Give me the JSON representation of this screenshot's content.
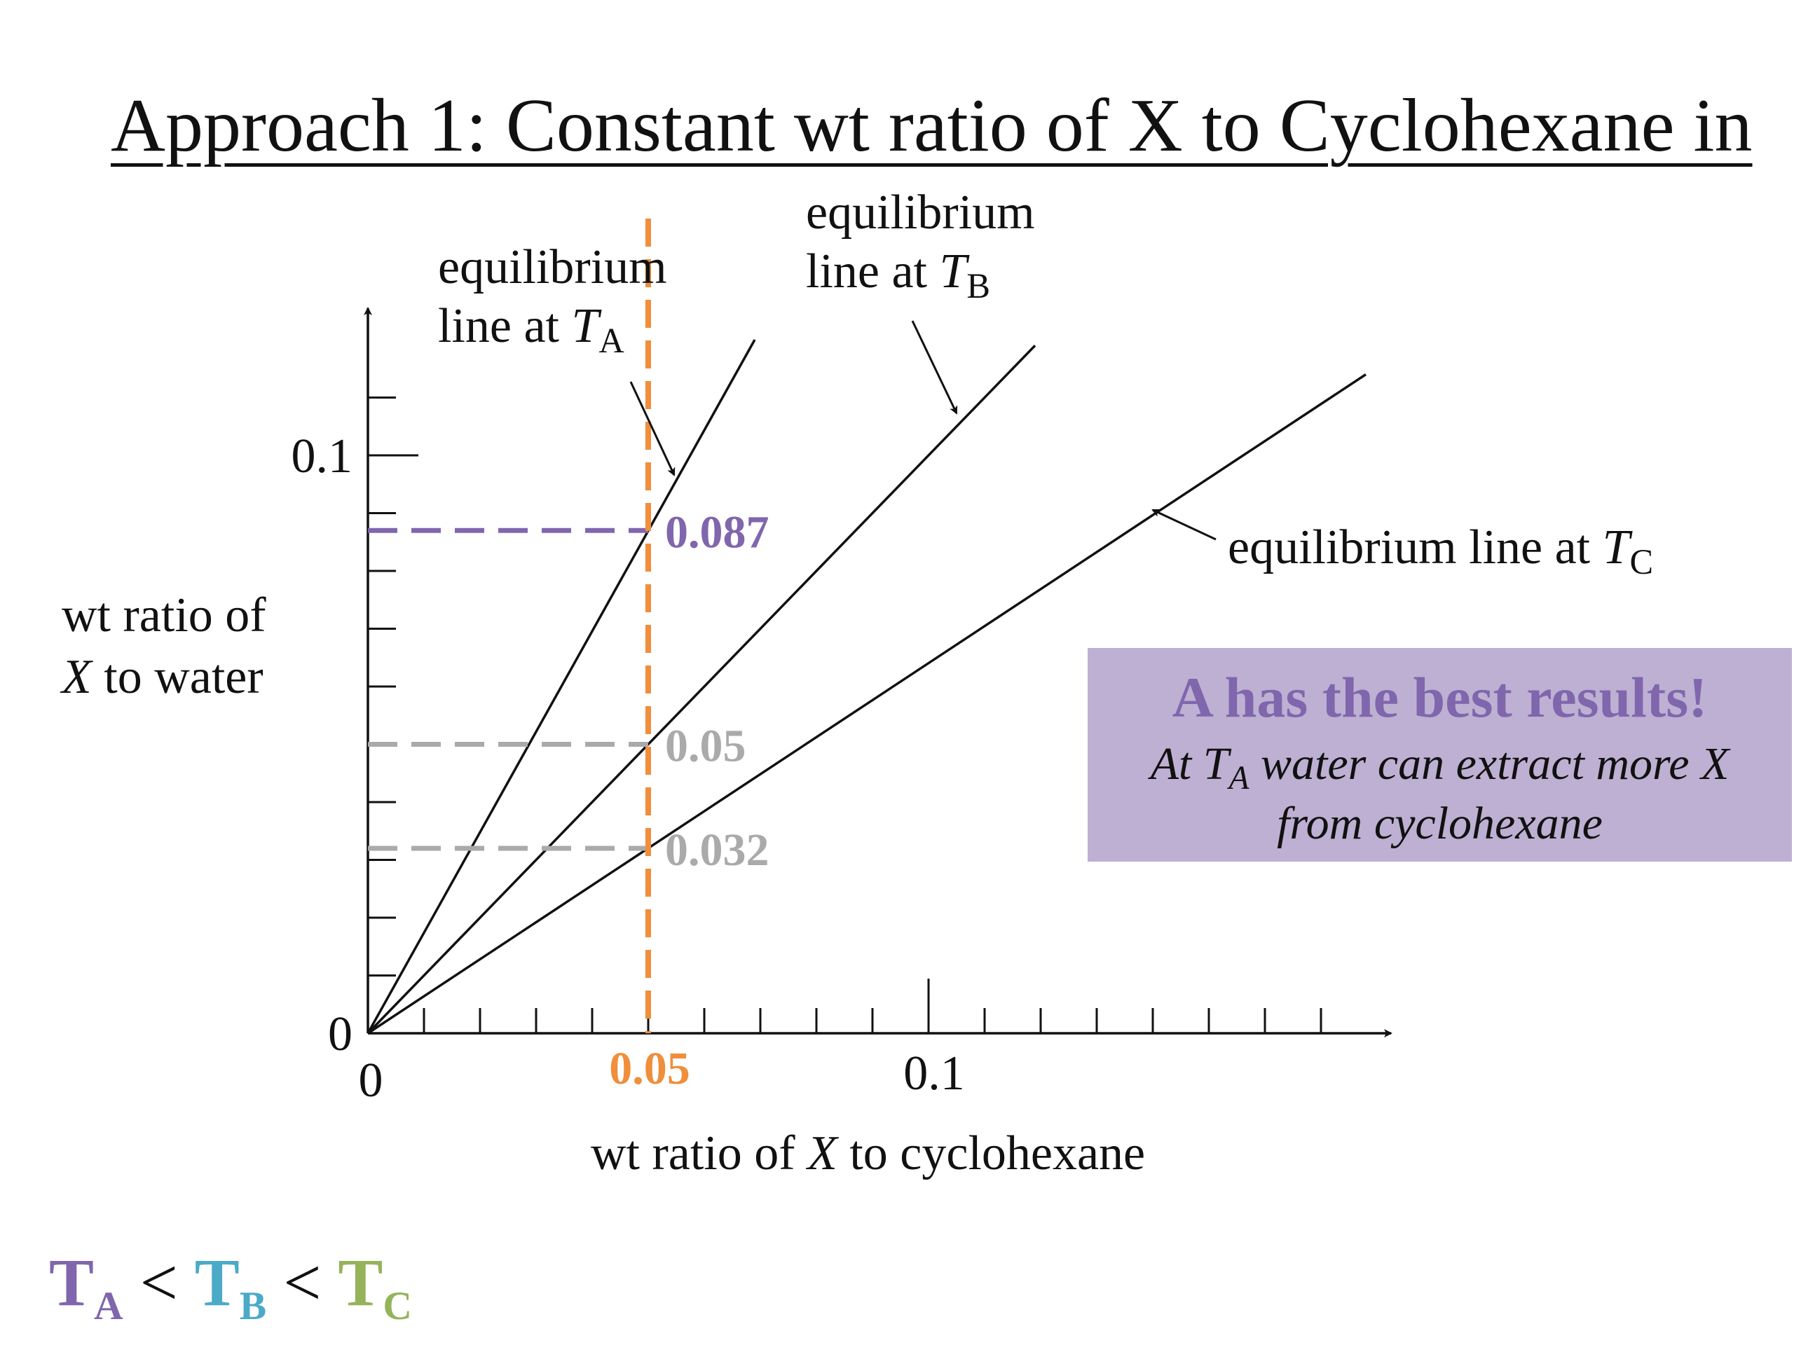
{
  "slide": {
    "title": "Approach 1: Constant wt ratio of X to Cyclohexane in"
  },
  "annotations": {
    "line_a_1": "equilibrium",
    "line_a_2": "line at",
    "line_b_1": "equilibrium",
    "line_b_2": "line at",
    "line_c": "equilibrium line at",
    "T": "T",
    "A": "A",
    "B": "B",
    "C": "C"
  },
  "axes": {
    "ylabel_1": "wt ratio of",
    "ylabel_2_var": "X",
    "ylabel_2_rest": " to water",
    "xlabel_pre": "wt ratio of ",
    "xlabel_var": "X",
    "xlabel_post": " to cyclohexane"
  },
  "callout": {
    "heading": "A has the best results!",
    "body_pre": "At ",
    "body_T": "T",
    "body_sub": "A",
    "body_post": " water can extract more X",
    "body_line2": "from cyclohexane"
  },
  "ordering": {
    "TA": "T",
    "A": "A",
    "lt1": " < ",
    "TB": "T",
    "B": "B",
    "lt2": " < ",
    "TC": "T",
    "C": "C"
  },
  "colors": {
    "A": "#8066ad",
    "B": "#4aaac8",
    "C": "#95b35a",
    "orange": "#f08e3b",
    "gray": "#aaaaaa",
    "callout_bg": "#bdb0d2"
  },
  "chart_data": {
    "type": "line",
    "x_axis": {
      "range": [
        0,
        0.17
      ],
      "major_ticks": [
        0,
        0.1
      ],
      "minor_step": 0.01,
      "tick_labels": [
        "0",
        "0.05",
        "0.1"
      ]
    },
    "y_axis": {
      "range": [
        0,
        0.11
      ],
      "minor_step": 0.01,
      "tick_labels": [
        "0",
        "0.1"
      ]
    },
    "series": [
      {
        "key": "A",
        "slope": 1.74,
        "x": [
          0,
          0.069
        ],
        "y": [
          0,
          0.12
        ]
      },
      {
        "key": "B",
        "slope": 1.0,
        "x": [
          0,
          0.119
        ],
        "y": [
          0,
          0.119
        ]
      },
      {
        "key": "C",
        "slope": 0.64,
        "x": [
          0,
          0.178
        ],
        "y": [
          0,
          0.114
        ]
      }
    ],
    "vertical_marker": {
      "x": 0.05,
      "label": "0.05"
    },
    "highlighted_points": [
      {
        "y": 0.087,
        "label": "0.087",
        "color_key": "A"
      },
      {
        "y": 0.05,
        "label": "0.05",
        "color_key": "gray"
      },
      {
        "y": 0.032,
        "label": "0.032",
        "color_key": "gray"
      }
    ]
  }
}
